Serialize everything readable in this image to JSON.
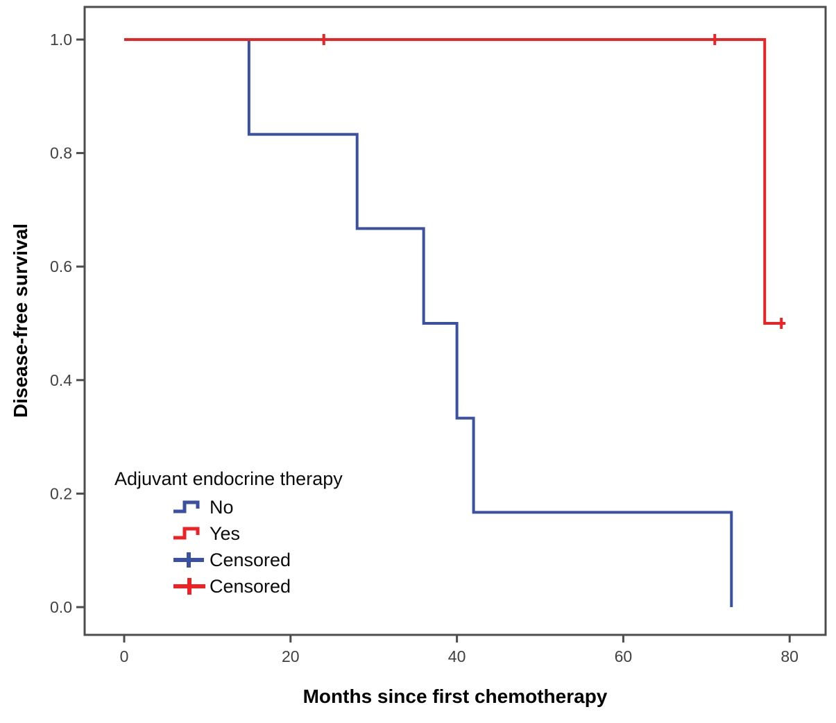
{
  "chart_data": {
    "type": "line",
    "subtype": "kaplan-meier-step",
    "title": "",
    "xlabel": "Months since first chemotherapy",
    "ylabel": "Disease-free survival",
    "xlim": [
      0,
      80
    ],
    "ylim": [
      0.0,
      1.0
    ],
    "grid": false,
    "x_ticks": [
      0,
      20,
      40,
      60,
      80
    ],
    "x_tick_labels": [
      "0",
      "20",
      "40",
      "60",
      "80"
    ],
    "y_ticks": [
      1.0,
      0.8,
      0.6,
      0.4,
      0.2,
      0.0
    ],
    "y_tick_labels": [
      "1.0",
      "0.8",
      "0.6",
      "0.4",
      "0.2",
      "0.0"
    ],
    "series": [
      {
        "name": "No",
        "color": "#3A51A3",
        "step_points": [
          [
            0,
            1.0
          ],
          [
            15,
            1.0
          ],
          [
            15,
            0.833
          ],
          [
            28,
            0.833
          ],
          [
            28,
            0.667
          ],
          [
            36,
            0.667
          ],
          [
            36,
            0.5
          ],
          [
            40,
            0.5
          ],
          [
            40,
            0.333
          ],
          [
            42,
            0.333
          ],
          [
            42,
            0.167
          ],
          [
            73,
            0.167
          ],
          [
            73,
            0.0
          ]
        ],
        "censored": []
      },
      {
        "name": "Yes",
        "color": "#ED2224",
        "step_points": [
          [
            0,
            1.0
          ],
          [
            77,
            1.0
          ],
          [
            77,
            0.5
          ],
          [
            79.5,
            0.5
          ]
        ],
        "censored": [
          [
            24,
            1.0
          ],
          [
            71,
            1.0
          ],
          [
            79,
            0.5
          ]
        ]
      }
    ],
    "legend": {
      "title": "Adjuvant endocrine therapy",
      "position": "lower-left-inside",
      "items": [
        {
          "label": "No",
          "symbol": "step",
          "color": "#3A51A3"
        },
        {
          "label": "Yes",
          "symbol": "step",
          "color": "#ED2224"
        },
        {
          "label": "Censored",
          "symbol": "plus",
          "color": "#3A51A3"
        },
        {
          "label": "Censored",
          "symbol": "plus",
          "color": "#ED2224"
        }
      ]
    },
    "colors": {
      "axis": "#4D4D4F",
      "tick_label": "#414042",
      "blue_series": "#3A51A3",
      "red_series": "#ED2224",
      "background": "#FFFFFF"
    }
  }
}
